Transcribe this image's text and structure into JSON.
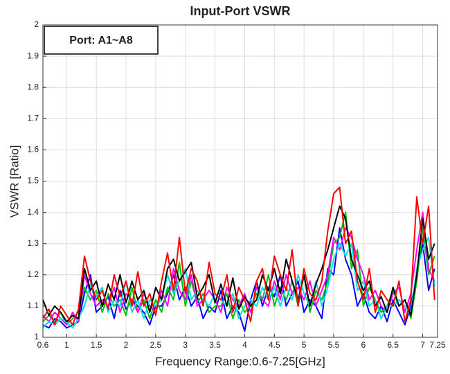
{
  "chart_data": {
    "type": "line",
    "title": "Input-Port VSWR",
    "annotation": "Port: A1~A8",
    "xlabel": "Frequency Range:0.6-7.25[GHz]",
    "ylabel": "VSWR [Ratio]",
    "xlim": [
      0.6,
      7.25
    ],
    "ylim": [
      1,
      2
    ],
    "xticks": [
      0.6,
      1,
      1.5,
      2,
      2.5,
      3,
      3.5,
      4,
      4.5,
      5,
      5.5,
      6,
      6.5,
      7,
      7.25
    ],
    "yticks": [
      1,
      1.1,
      1.2,
      1.3,
      1.4,
      1.5,
      1.6,
      1.7,
      1.8,
      1.9,
      2
    ],
    "grid": true,
    "x": [
      0.6,
      0.7,
      0.8,
      0.9,
      1.0,
      1.1,
      1.2,
      1.3,
      1.4,
      1.5,
      1.6,
      1.7,
      1.8,
      1.9,
      2.0,
      2.1,
      2.2,
      2.3,
      2.4,
      2.5,
      2.6,
      2.7,
      2.8,
      2.9,
      3.0,
      3.1,
      3.2,
      3.3,
      3.4,
      3.5,
      3.6,
      3.7,
      3.8,
      3.9,
      4.0,
      4.1,
      4.2,
      4.3,
      4.4,
      4.5,
      4.6,
      4.7,
      4.8,
      4.9,
      5.0,
      5.1,
      5.2,
      5.3,
      5.4,
      5.5,
      5.6,
      5.7,
      5.8,
      5.9,
      6.0,
      6.1,
      6.2,
      6.3,
      6.4,
      6.5,
      6.6,
      6.7,
      6.8,
      6.9,
      7.0,
      7.1,
      7.2
    ],
    "series": [
      {
        "color": "#0000ff",
        "values": [
          1.04,
          1.03,
          1.06,
          1.05,
          1.03,
          1.04,
          1.05,
          1.14,
          1.2,
          1.08,
          1.1,
          1.13,
          1.06,
          1.15,
          1.09,
          1.12,
          1.1,
          1.08,
          1.04,
          1.1,
          1.1,
          1.14,
          1.2,
          1.12,
          1.16,
          1.1,
          1.13,
          1.06,
          1.1,
          1.08,
          1.15,
          1.06,
          1.1,
          1.08,
          1.02,
          1.12,
          1.18,
          1.1,
          1.16,
          1.13,
          1.2,
          1.1,
          1.14,
          1.18,
          1.08,
          1.12,
          1.1,
          1.06,
          1.22,
          1.2,
          1.35,
          1.25,
          1.2,
          1.1,
          1.14,
          1.08,
          1.06,
          1.1,
          1.05,
          1.12,
          1.08,
          1.04,
          1.1,
          1.2,
          1.3,
          1.15,
          1.22
        ]
      },
      {
        "color": "#00c000",
        "values": [
          1.05,
          1.07,
          1.05,
          1.08,
          1.04,
          1.06,
          1.08,
          1.16,
          1.12,
          1.15,
          1.08,
          1.14,
          1.1,
          1.12,
          1.07,
          1.16,
          1.08,
          1.12,
          1.06,
          1.12,
          1.08,
          1.16,
          1.12,
          1.24,
          1.1,
          1.18,
          1.11,
          1.14,
          1.08,
          1.1,
          1.1,
          1.14,
          1.06,
          1.12,
          1.08,
          1.1,
          1.14,
          1.12,
          1.2,
          1.1,
          1.16,
          1.12,
          1.18,
          1.1,
          1.2,
          1.08,
          1.15,
          1.12,
          1.18,
          1.3,
          1.32,
          1.4,
          1.22,
          1.28,
          1.1,
          1.16,
          1.12,
          1.08,
          1.1,
          1.15,
          1.1,
          1.12,
          1.06,
          1.18,
          1.35,
          1.2,
          1.26
        ]
      },
      {
        "color": "#ff00ff",
        "values": [
          1.07,
          1.05,
          1.08,
          1.06,
          1.04,
          1.08,
          1.05,
          1.2,
          1.14,
          1.1,
          1.12,
          1.1,
          1.16,
          1.08,
          1.14,
          1.12,
          1.08,
          1.14,
          1.1,
          1.08,
          1.15,
          1.1,
          1.22,
          1.15,
          1.12,
          1.2,
          1.1,
          1.12,
          1.15,
          1.12,
          1.08,
          1.16,
          1.12,
          1.1,
          1.14,
          1.08,
          1.16,
          1.12,
          1.1,
          1.18,
          1.12,
          1.2,
          1.14,
          1.16,
          1.12,
          1.18,
          1.1,
          1.15,
          1.2,
          1.32,
          1.28,
          1.35,
          1.32,
          1.25,
          1.2,
          1.12,
          1.15,
          1.1,
          1.08,
          1.14,
          1.16,
          1.08,
          1.14,
          1.28,
          1.4,
          1.22,
          1.18
        ]
      },
      {
        "color": "#00e0e0",
        "values": [
          1.03,
          1.05,
          1.04,
          1.06,
          1.05,
          1.03,
          1.06,
          1.1,
          1.17,
          1.13,
          1.16,
          1.08,
          1.12,
          1.1,
          1.18,
          1.08,
          1.12,
          1.06,
          1.12,
          1.1,
          1.12,
          1.2,
          1.14,
          1.18,
          1.22,
          1.12,
          1.15,
          1.12,
          1.1,
          1.14,
          1.12,
          1.1,
          1.14,
          1.06,
          1.1,
          1.12,
          1.1,
          1.16,
          1.12,
          1.16,
          1.1,
          1.16,
          1.12,
          1.2,
          1.14,
          1.1,
          1.18,
          1.1,
          1.16,
          1.25,
          1.3,
          1.26,
          1.3,
          1.15,
          1.18,
          1.1,
          1.12,
          1.06,
          1.1,
          1.1,
          1.12,
          1.1,
          1.08,
          1.22,
          1.28,
          1.32,
          1.16
        ]
      },
      {
        "color": "#000000",
        "values": [
          1.12,
          1.07,
          1.1,
          1.08,
          1.05,
          1.07,
          1.06,
          1.22,
          1.15,
          1.18,
          1.1,
          1.17,
          1.12,
          1.2,
          1.11,
          1.18,
          1.12,
          1.15,
          1.08,
          1.16,
          1.12,
          1.22,
          1.25,
          1.18,
          1.21,
          1.24,
          1.13,
          1.16,
          1.2,
          1.11,
          1.17,
          1.1,
          1.19,
          1.09,
          1.13,
          1.1,
          1.12,
          1.2,
          1.15,
          1.22,
          1.14,
          1.25,
          1.18,
          1.12,
          1.2,
          1.1,
          1.17,
          1.22,
          1.28,
          1.35,
          1.42,
          1.38,
          1.25,
          1.2,
          1.15,
          1.18,
          1.1,
          1.13,
          1.08,
          1.16,
          1.1,
          1.12,
          1.07,
          1.2,
          1.38,
          1.25,
          1.3
        ]
      },
      {
        "color": "#ff0000",
        "values": [
          1.06,
          1.09,
          1.04,
          1.1,
          1.07,
          1.04,
          1.09,
          1.26,
          1.18,
          1.12,
          1.15,
          1.09,
          1.2,
          1.13,
          1.18,
          1.1,
          1.21,
          1.1,
          1.14,
          1.07,
          1.18,
          1.27,
          1.15,
          1.32,
          1.14,
          1.22,
          1.18,
          1.1,
          1.24,
          1.14,
          1.12,
          1.2,
          1.08,
          1.16,
          1.12,
          1.05,
          1.18,
          1.22,
          1.12,
          1.26,
          1.2,
          1.15,
          1.28,
          1.1,
          1.22,
          1.14,
          1.12,
          1.18,
          1.34,
          1.46,
          1.48,
          1.3,
          1.34,
          1.18,
          1.12,
          1.22,
          1.08,
          1.15,
          1.12,
          1.1,
          1.18,
          1.05,
          1.12,
          1.45,
          1.3,
          1.42,
          1.12
        ]
      }
    ]
  }
}
